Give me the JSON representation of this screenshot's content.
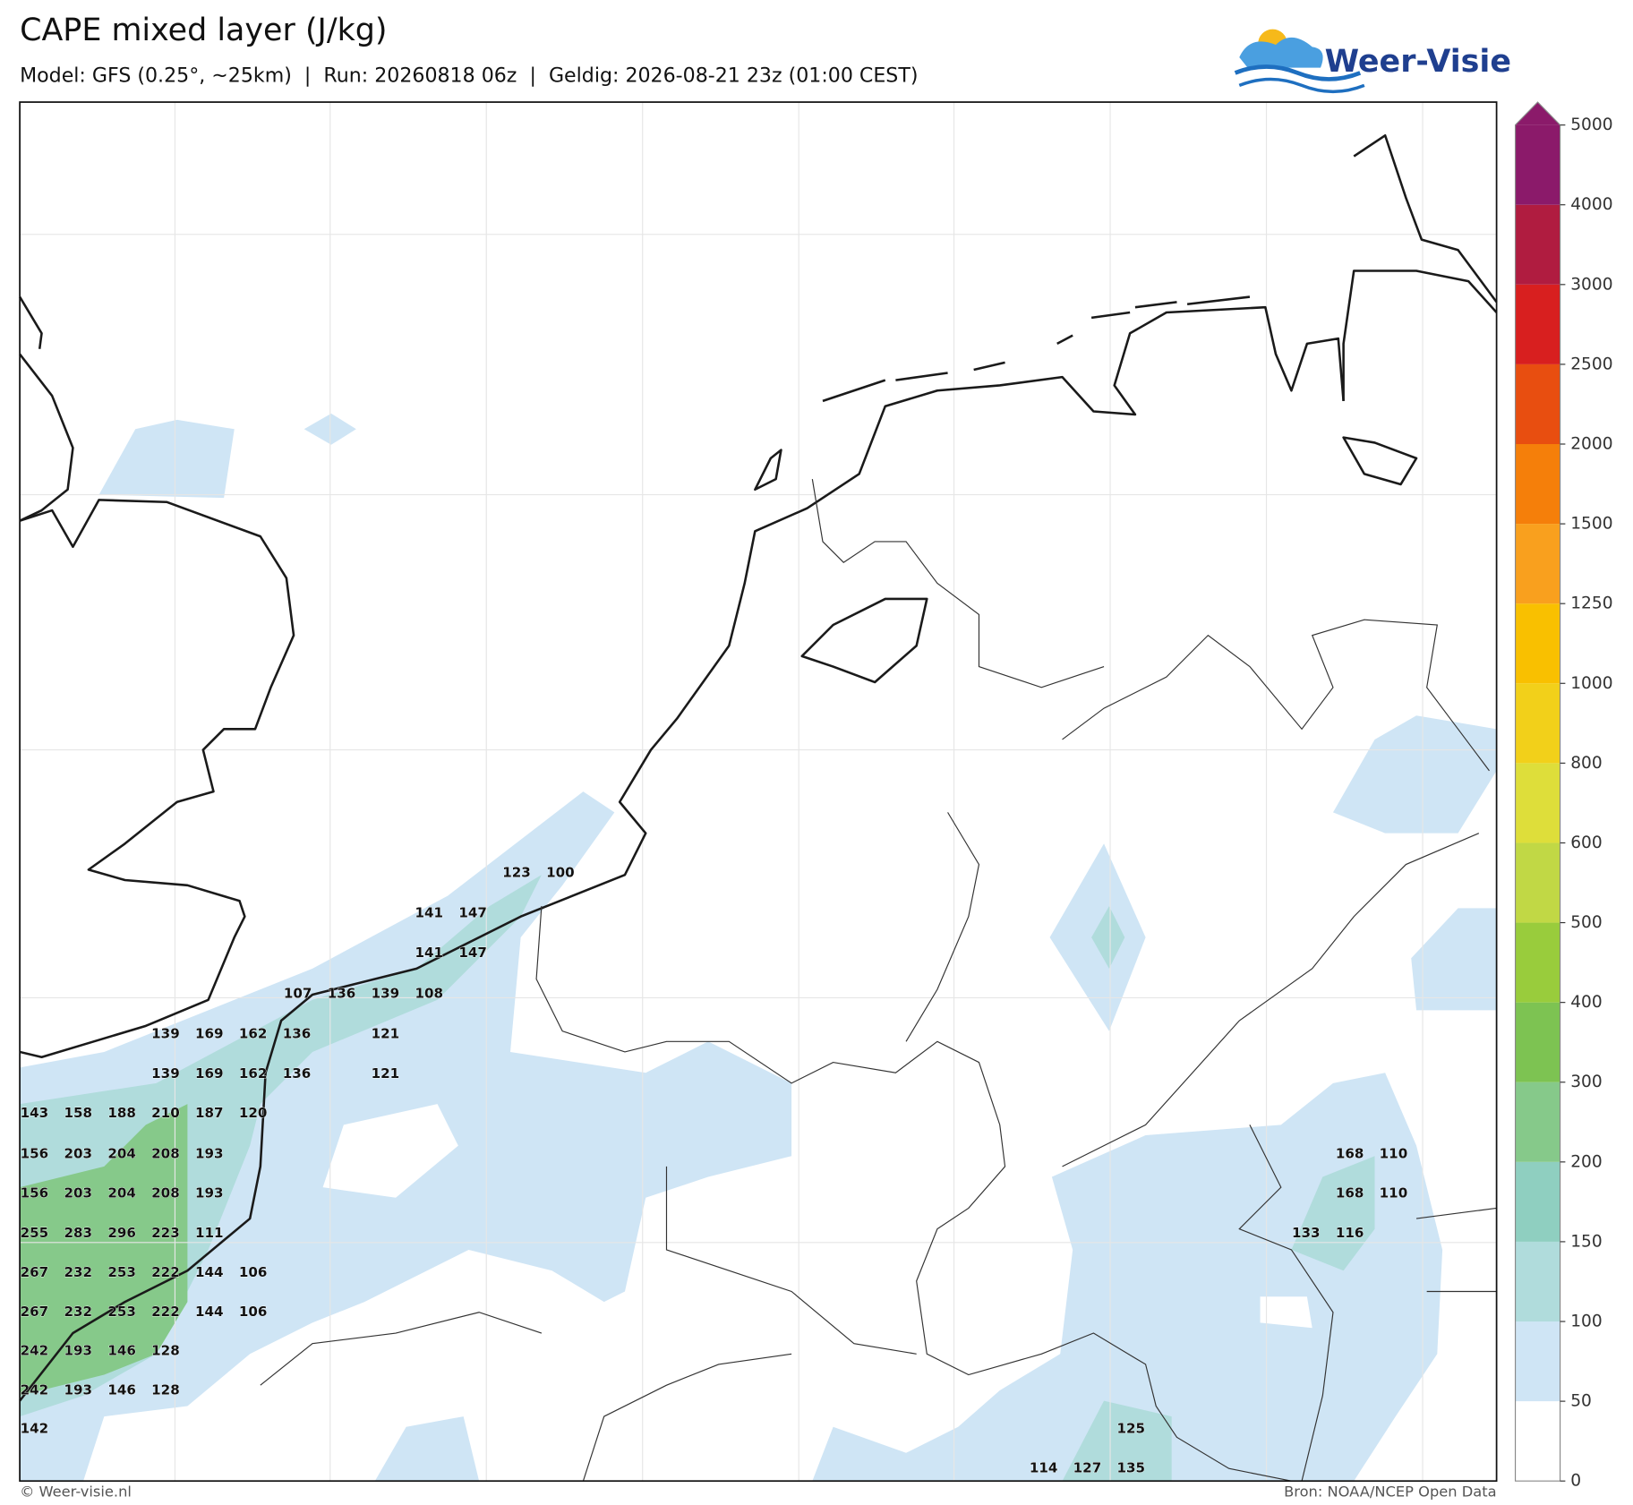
{
  "header": {
    "title": "CAPE mixed layer (J/kg)",
    "subtitle": "Model: GFS (0.25°, ~25km)  |  Run: 20260818 06z  |  Geldig: 2026-08-21 23z (01:00 CEST)"
  },
  "logo": "Weer-Visie",
  "map": {
    "point_labels": [
      123,
      100,
      141,
      147,
      141,
      147,
      107,
      136,
      139,
      108,
      139,
      169,
      162,
      136,
      121,
      139,
      169,
      162,
      136,
      121,
      143,
      158,
      188,
      210,
      187,
      120,
      156,
      203,
      204,
      208,
      193,
      156,
      203,
      204,
      208,
      193,
      255,
      283,
      296,
      223,
      111,
      267,
      232,
      253,
      222,
      144,
      106,
      267,
      232,
      253,
      222,
      144,
      106,
      242,
      193,
      146,
      128,
      242,
      193,
      146,
      128,
      142,
      168,
      110,
      168,
      110,
      133,
      116,
      125,
      114,
      127,
      135
    ]
  },
  "colorbar": {
    "ticks": [
      0,
      50,
      100,
      150,
      200,
      300,
      400,
      500,
      600,
      800,
      1000,
      1250,
      1500,
      2000,
      2500,
      3000,
      4000,
      5000
    ],
    "colors": [
      "#ffffff",
      "#cfe5f5",
      "#b0dcdc",
      "#8fcfc0",
      "#86c98a",
      "#7dc352",
      "#99cc3c",
      "#c1d845",
      "#dede3a",
      "#f2d01a",
      "#f9c000",
      "#f9a01e",
      "#f57f0a",
      "#e84e10",
      "#d81f1f",
      "#b01c40",
      "#8b1a6a"
    ],
    "extend_color": "#8b1a6a"
  },
  "footer": {
    "credit": "© Weer-visie.nl",
    "source": "Bron: NOAA/NCEP Open Data"
  }
}
